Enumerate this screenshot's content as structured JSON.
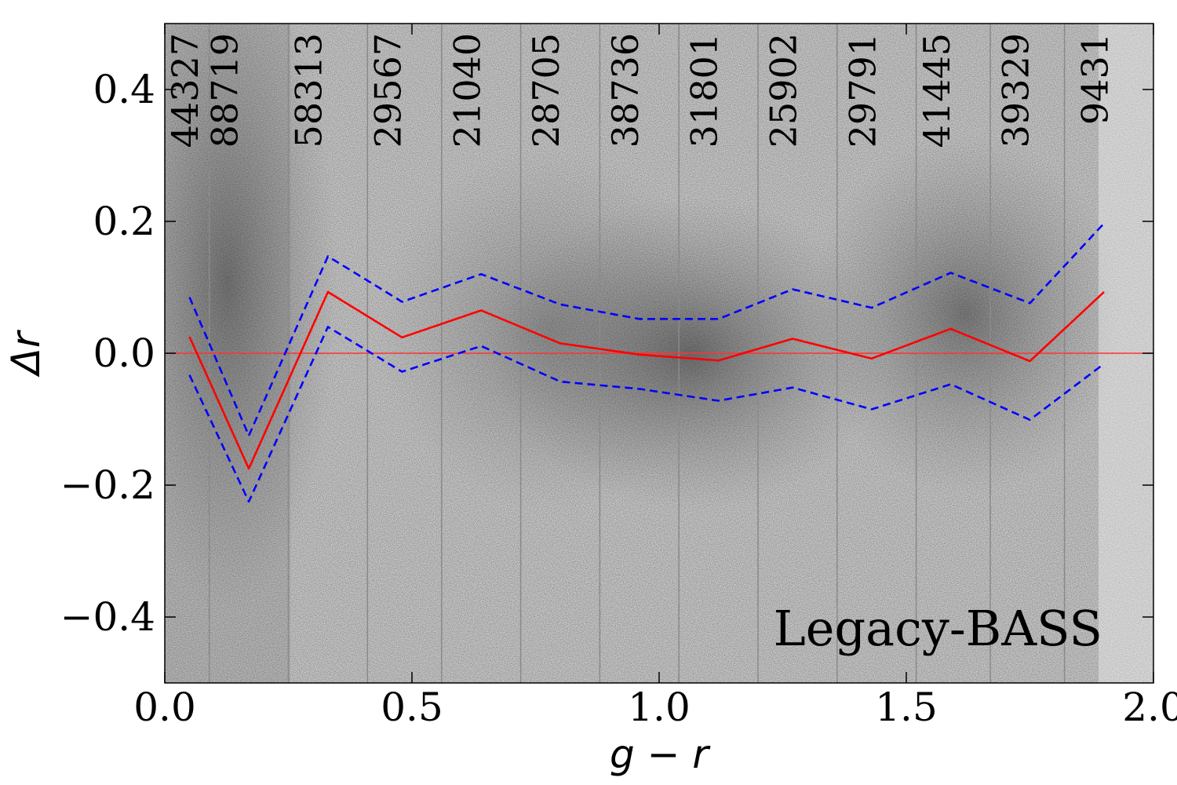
{
  "chart_data": {
    "type": "line",
    "xlabel": "g − r",
    "ylabel": "Δr",
    "xlim": [
      0.0,
      2.0
    ],
    "ylim": [
      -0.5,
      0.5
    ],
    "xticks": [
      "0.0",
      "0.5",
      "1.0",
      "1.5",
      "2.0"
    ],
    "yticks": [
      "−0.4",
      "−0.2",
      "0.0",
      "0.2",
      "0.4"
    ],
    "xtick_values": [
      0.0,
      0.5,
      1.0,
      1.5,
      2.0
    ],
    "ytick_values": [
      -0.4,
      -0.2,
      0.0,
      0.2,
      0.4
    ],
    "annotation": "Legacy-BASS",
    "bin_edges": [
      0.09,
      0.25,
      0.41,
      0.56,
      0.72,
      0.88,
      1.04,
      1.2,
      1.36,
      1.52,
      1.67,
      1.82
    ],
    "bin_counts": [
      {
        "x": 0.04,
        "label": "44327"
      },
      {
        "x": 0.12,
        "label": "88719"
      },
      {
        "x": 0.29,
        "label": "58313"
      },
      {
        "x": 0.45,
        "label": "29567"
      },
      {
        "x": 0.61,
        "label": "21040"
      },
      {
        "x": 0.77,
        "label": "28705"
      },
      {
        "x": 0.93,
        "label": "38736"
      },
      {
        "x": 1.09,
        "label": "31801"
      },
      {
        "x": 1.25,
        "label": "25902"
      },
      {
        "x": 1.41,
        "label": "29791"
      },
      {
        "x": 1.56,
        "label": "41445"
      },
      {
        "x": 1.72,
        "label": "39329"
      },
      {
        "x": 1.88,
        "label": "9431"
      }
    ],
    "zero_line": 0.0,
    "series": [
      {
        "style": "solid",
        "color": "#ff0000",
        "x": [
          0.05,
          0.17,
          0.33,
          0.48,
          0.64,
          0.8,
          0.96,
          1.12,
          1.27,
          1.43,
          1.59,
          1.75,
          1.9
        ],
        "y": [
          0.025,
          -0.175,
          0.093,
          0.024,
          0.065,
          0.015,
          -0.002,
          -0.011,
          0.022,
          -0.008,
          0.037,
          -0.012,
          0.093
        ]
      },
      {
        "style": "dashed",
        "color": "#0000ff",
        "x": [
          0.05,
          0.17,
          0.33,
          0.48,
          0.64,
          0.8,
          0.96,
          1.12,
          1.27,
          1.43,
          1.59,
          1.75,
          1.9
        ],
        "y": [
          0.085,
          -0.125,
          0.147,
          0.078,
          0.12,
          0.074,
          0.052,
          0.052,
          0.097,
          0.069,
          0.122,
          0.076,
          0.197
        ]
      },
      {
        "style": "dashed",
        "color": "#0000ff",
        "x": [
          0.05,
          0.17,
          0.33,
          0.48,
          0.64,
          0.8,
          0.96,
          1.12,
          1.27,
          1.43,
          1.59,
          1.75,
          1.9
        ],
        "y": [
          -0.033,
          -0.225,
          0.04,
          -0.028,
          0.011,
          -0.043,
          -0.054,
          -0.072,
          -0.052,
          -0.085,
          -0.047,
          -0.101,
          -0.016
        ]
      }
    ]
  }
}
